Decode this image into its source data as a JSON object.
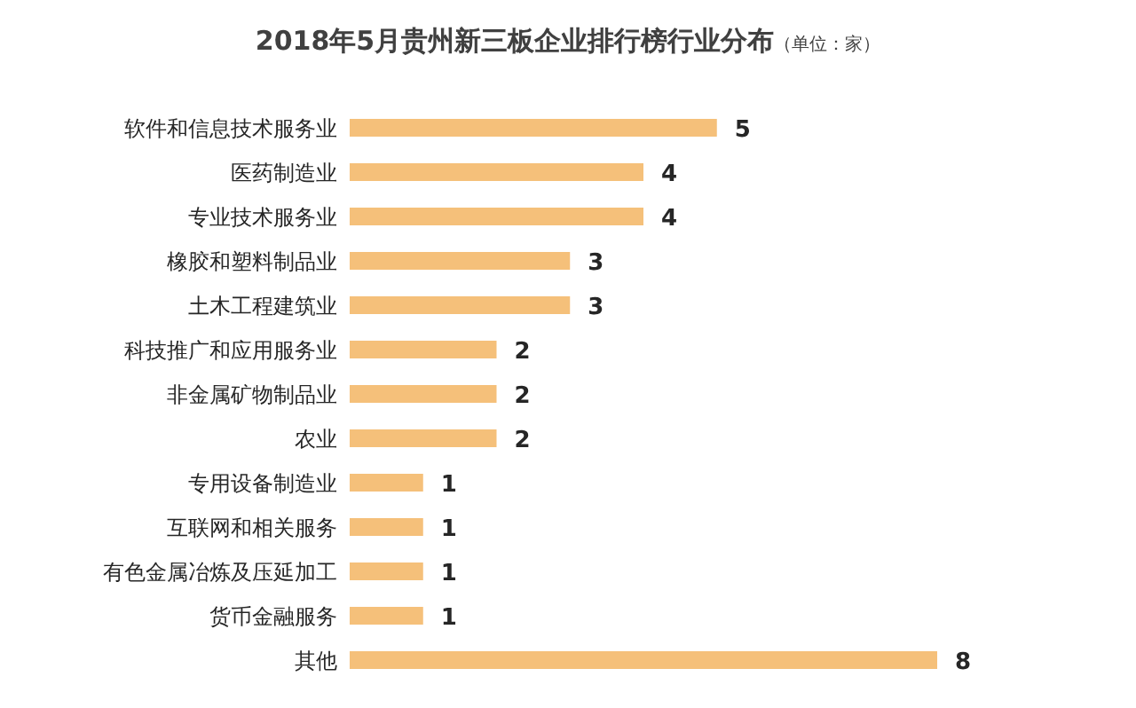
{
  "chart_data": {
    "type": "bar",
    "orientation": "horizontal",
    "title": "2018年5月贵州新三板企业排行榜行业分布",
    "subtitle": "（单位：家）",
    "categories": [
      "软件和信息技术服务业",
      "医药制造业",
      "专业技术服务业",
      "橡胶和塑料制品业",
      "土木工程建筑业",
      "科技推广和应用服务业",
      "非金属矿物制品业",
      "农业",
      "专用设备制造业",
      "互联网和相关服务",
      "有色金属冶炼及压延加工",
      "货币金融服务",
      "其他"
    ],
    "values": [
      5,
      4,
      4,
      3,
      3,
      2,
      2,
      2,
      1,
      1,
      1,
      1,
      8
    ],
    "color": "#f5c07a",
    "data_labels": true
  }
}
